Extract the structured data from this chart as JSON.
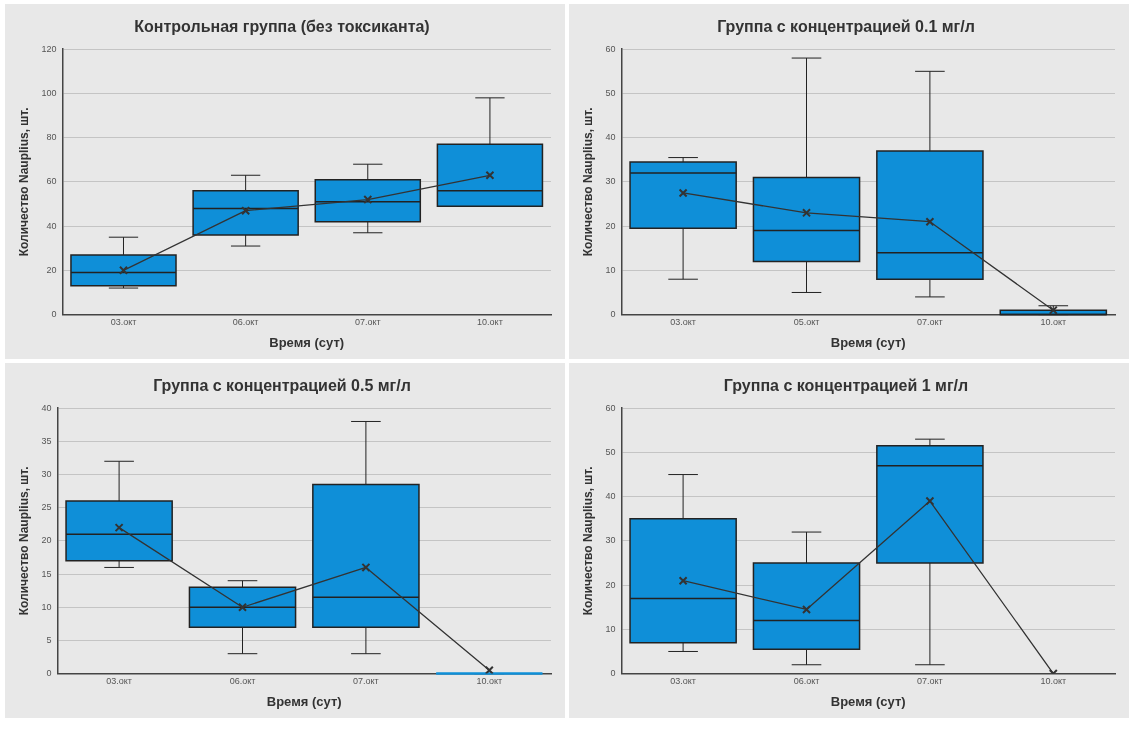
{
  "chart_data": [
    {
      "type": "box",
      "title": "Контрольная группа (без токсиканта)",
      "xlabel": "Время (сут)",
      "ylabel": "Количество Nauplius, шт.",
      "categories": [
        "03.окт",
        "06.окт",
        "07.окт",
        "10.окт"
      ],
      "ylim": [
        0,
        120
      ],
      "yticks": [
        0,
        20,
        40,
        60,
        80,
        100,
        120
      ],
      "grid": "y",
      "marker": "cross",
      "series": [
        {
          "color": "#0f8fd8",
          "boxes": [
            {
              "low": 12,
              "q1": 13,
              "median": 19,
              "q3": 27,
              "high": 35
            },
            {
              "low": 31,
              "q1": 36,
              "median": 48,
              "q3": 56,
              "high": 63
            },
            {
              "low": 37,
              "q1": 42,
              "median": 51,
              "q3": 61,
              "high": 68
            },
            {
              "low": 49,
              "q1": 49,
              "median": 56,
              "q3": 77,
              "high": 98
            }
          ]
        },
        {
          "type": "line",
          "color": "#333333",
          "values": [
            20,
            47,
            52,
            63
          ]
        }
      ]
    },
    {
      "type": "box",
      "title": "Группа с концентрацией 0.1 мг/л",
      "xlabel": "Время (сут)",
      "ylabel": "Количество Nauplius, шт.",
      "categories": [
        "03.окт",
        "05.окт",
        "07.окт",
        "10.окт"
      ],
      "ylim": [
        0,
        60
      ],
      "yticks": [
        0,
        10,
        20,
        30,
        40,
        50,
        60
      ],
      "grid": "y",
      "marker": "cross",
      "series": [
        {
          "color": "#0f8fd8",
          "boxes": [
            {
              "low": 8,
              "q1": 19.5,
              "median": 32,
              "q3": 34.5,
              "high": 35.5
            },
            {
              "low": 5,
              "q1": 12,
              "median": 19,
              "q3": 31,
              "high": 58
            },
            {
              "low": 4,
              "q1": 8,
              "median": 14,
              "q3": 37,
              "high": 55
            },
            {
              "low": 0,
              "q1": 0,
              "median": 0,
              "q3": 1,
              "high": 2
            }
          ]
        },
        {
          "type": "line",
          "color": "#333333",
          "values": [
            27.5,
            23,
            21,
            1
          ]
        }
      ]
    },
    {
      "type": "box",
      "title": "Группа с концентрацией 0.5 мг/л",
      "xlabel": "Время (сут)",
      "ylabel": "Количество Nauplius, шт.",
      "categories": [
        "03.окт",
        "06.окт",
        "07.окт",
        "10.окт"
      ],
      "ylim": [
        0,
        40
      ],
      "yticks": [
        0,
        5,
        10,
        15,
        20,
        25,
        30,
        35,
        40
      ],
      "grid": "y",
      "marker": "cross",
      "series": [
        {
          "color": "#0f8fd8",
          "boxes": [
            {
              "low": 16,
              "q1": 17,
              "median": 21,
              "q3": 26,
              "high": 32
            },
            {
              "low": 3,
              "q1": 7,
              "median": 10,
              "q3": 13,
              "high": 14
            },
            {
              "low": 3,
              "q1": 7,
              "median": 11.5,
              "q3": 28.5,
              "high": 38
            },
            {
              "low": 0,
              "q1": 0,
              "median": 0,
              "q3": 0,
              "high": 0
            }
          ]
        },
        {
          "type": "line",
          "color": "#333333",
          "values": [
            22,
            10,
            16,
            0.5
          ]
        }
      ]
    },
    {
      "type": "box",
      "title": "Группа с концентрацией 1 мг/л",
      "xlabel": "Время (сут)",
      "ylabel": "Количество Nauplius, шт.",
      "categories": [
        "03.окт",
        "06.окт",
        "07.окт",
        "10.окт"
      ],
      "ylim": [
        0,
        60
      ],
      "yticks": [
        0,
        10,
        20,
        30,
        40,
        50,
        60
      ],
      "grid": "y",
      "marker": "cross",
      "series": [
        {
          "color": "#0f8fd8",
          "boxes": [
            {
              "low": 5,
              "q1": 7,
              "median": 17,
              "q3": 35,
              "high": 45
            },
            {
              "low": 2,
              "q1": 5.5,
              "median": 12,
              "q3": 25,
              "high": 32
            },
            {
              "low": 2,
              "q1": 25,
              "median": 47,
              "q3": 51.5,
              "high": 53
            },
            null
          ]
        },
        {
          "type": "line",
          "color": "#333333",
          "values": [
            21,
            14.5,
            39,
            0
          ]
        }
      ]
    }
  ]
}
